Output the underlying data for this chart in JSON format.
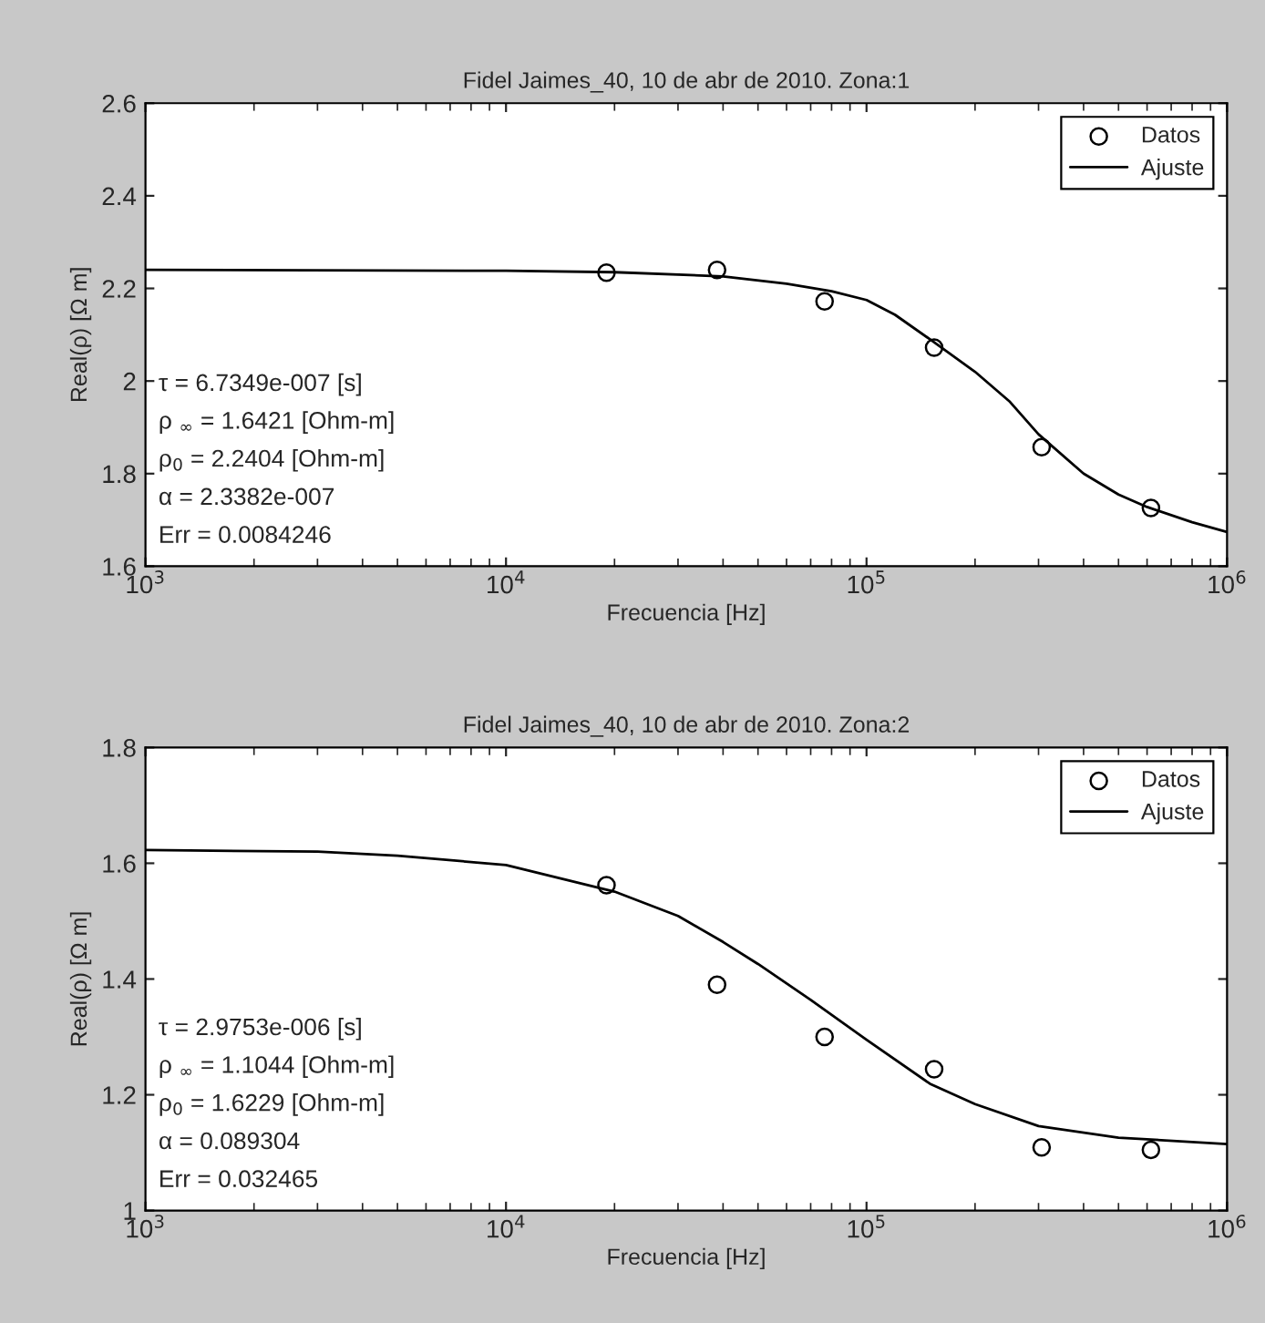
{
  "chart_data": [
    {
      "type": "scatter",
      "title": "Fidel Jaimes_40, 10 de abr de 2010. Zona:1",
      "xlabel": "Frecuencia [Hz]",
      "ylabel": "Real(ρ) [Ω m]",
      "log": "x",
      "legend": "top right",
      "xlim": [
        1000,
        1000000
      ],
      "xticks": [
        {
          "value": 1000,
          "label": "10$^{3}$"
        },
        {
          "value": 10000,
          "label": "10$^{4}$"
        },
        {
          "value": 100000,
          "label": "10$^{5}$"
        },
        {
          "value": 1000000,
          "label": "10$^{6}$"
        }
      ],
      "ylim": [
        1.6,
        2.6
      ],
      "yticks": [
        1.6,
        1.8,
        {
          "value": 2.0,
          "label": "2"
        },
        2.2,
        2.4,
        2.6
      ],
      "series": [
        {
          "name": "Datos",
          "marker": "circle",
          "color": "#000000",
          "x": [
            19000,
            38500,
            76500,
            154000,
            306000,
            615000
          ],
          "values": [
            2.234,
            2.24,
            2.172,
            2.072,
            1.857,
            1.726
          ]
        },
        {
          "name": "Ajuste",
          "type": "line",
          "marker": "none",
          "line_style": "solid",
          "color": "#000000",
          "x": [
            1000,
            10000,
            20000,
            40000,
            60000,
            80000,
            100000,
            120000,
            150000,
            200000,
            250000,
            300000,
            400000,
            500000,
            600000,
            800000,
            1000000
          ],
          "values": [
            2.24,
            2.238,
            2.235,
            2.226,
            2.21,
            2.194,
            2.175,
            2.143,
            2.09,
            2.02,
            1.955,
            1.885,
            1.8,
            1.755,
            1.728,
            1.695,
            1.674
          ]
        }
      ],
      "annotations": [
        "τ = 6.7349e-007 [s]",
        "ρ $_{∞}$ = 1.6421 [Ohm-m]",
        "ρ$_{0}$ = 2.2404 [Ohm-m]",
        "α = 2.3382e-007",
        "Err = 0.0084246"
      ]
    },
    {
      "type": "scatter",
      "title": "Fidel Jaimes_40, 10 de abr de 2010. Zona:2",
      "xlabel": "Frecuencia [Hz]",
      "ylabel": "Real(ρ) [Ω m]",
      "log": "x",
      "legend": "top right",
      "xlim": [
        1000,
        1000000
      ],
      "xticks": [
        {
          "value": 1000,
          "label": "10$^{3}$"
        },
        {
          "value": 10000,
          "label": "10$^{4}$"
        },
        {
          "value": 100000,
          "label": "10$^{5}$"
        },
        {
          "value": 1000000,
          "label": "10$^{6}$"
        }
      ],
      "ylim": [
        1.0,
        1.8
      ],
      "yticks": [
        {
          "value": 1.0,
          "label": "1"
        },
        1.2,
        1.4,
        1.6,
        1.8
      ],
      "series": [
        {
          "name": "Datos",
          "marker": "circle",
          "color": "#000000",
          "x": [
            19000,
            38500,
            76500,
            154000,
            306000,
            615000
          ],
          "values": [
            1.562,
            1.39,
            1.3,
            1.244,
            1.109,
            1.105
          ]
        },
        {
          "name": "Ajuste",
          "type": "line",
          "marker": "none",
          "line_style": "solid",
          "color": "#000000",
          "x": [
            1000,
            3000,
            5000,
            10000,
            20000,
            30000,
            40000,
            50000,
            70000,
            100000,
            150000,
            200000,
            300000,
            500000,
            1000000
          ],
          "values": [
            1.623,
            1.62,
            1.613,
            1.597,
            1.551,
            1.509,
            1.464,
            1.426,
            1.364,
            1.295,
            1.219,
            1.184,
            1.146,
            1.126,
            1.115
          ]
        }
      ],
      "annotations": [
        "τ = 2.9753e-006 [s]",
        "ρ $_{∞}$ = 1.1044 [Ohm-m]",
        "ρ$_{0}$ = 1.6229 [Ohm-m]",
        "α = 0.089304",
        "Err = 0.032465"
      ]
    }
  ]
}
